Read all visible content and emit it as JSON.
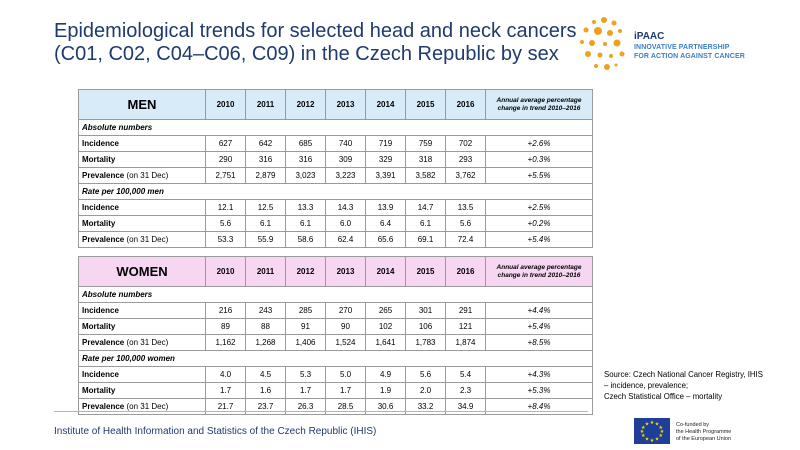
{
  "title": {
    "line1": "Epidemiological trends for selected head and neck cancers",
    "line2": "(C01, C02, C04–C06, C09) in the Czech Republic by sex"
  },
  "logo": {
    "brand_i": "i",
    "brand_rest": "PAAC",
    "tagline1": "INNOVATIVE PARTNERSHIP",
    "tagline2": "FOR ACTION AGAINST CANCER",
    "colors": {
      "dots": "#f0a01e",
      "text": "#1f3a6e",
      "tagline": "#3d7fc0"
    }
  },
  "tables": {
    "years": [
      "2010",
      "2011",
      "2012",
      "2013",
      "2014",
      "2015",
      "2016"
    ],
    "annual_header": "Annual average percentage change in trend 2010–2016",
    "men": {
      "label": "MEN",
      "header_color": "#d8ebf9",
      "sections": [
        {
          "title": "Absolute numbers",
          "rows": [
            {
              "label": "Incidence",
              "note": "",
              "values": [
                "627",
                "642",
                "685",
                "740",
                "719",
                "759",
                "702"
              ],
              "change": "+2.6%"
            },
            {
              "label": "Mortality",
              "note": "",
              "values": [
                "290",
                "316",
                "316",
                "309",
                "329",
                "318",
                "293"
              ],
              "change": "+0.3%"
            },
            {
              "label": "Prevalence",
              "note": " (on 31 Dec)",
              "values": [
                "2,751",
                "2,879",
                "3,023",
                "3,223",
                "3,391",
                "3,582",
                "3,762"
              ],
              "change": "+5.5%"
            }
          ]
        },
        {
          "title": "Rate per 100,000 men",
          "rows": [
            {
              "label": "Incidence",
              "note": "",
              "values": [
                "12.1",
                "12.5",
                "13.3",
                "14.3",
                "13.9",
                "14.7",
                "13.5"
              ],
              "change": "+2.5%"
            },
            {
              "label": "Mortality",
              "note": "",
              "values": [
                "5.6",
                "6.1",
                "6.1",
                "6.0",
                "6.4",
                "6.1",
                "5.6"
              ],
              "change": "+0.2%"
            },
            {
              "label": "Prevalence",
              "note": " (on 31 Dec)",
              "values": [
                "53.3",
                "55.9",
                "58.6",
                "62.4",
                "65.6",
                "69.1",
                "72.4"
              ],
              "change": "+5.4%"
            }
          ]
        }
      ]
    },
    "women": {
      "label": "WOMEN",
      "header_color": "#f7d6f1",
      "sections": [
        {
          "title": "Absolute numbers",
          "rows": [
            {
              "label": "Incidence",
              "note": "",
              "values": [
                "216",
                "243",
                "285",
                "270",
                "265",
                "301",
                "291"
              ],
              "change": "+4.4%"
            },
            {
              "label": "Mortality",
              "note": "",
              "values": [
                "89",
                "88",
                "91",
                "90",
                "102",
                "106",
                "121"
              ],
              "change": "+5.4%"
            },
            {
              "label": "Prevalence",
              "note": " (on 31 Dec)",
              "values": [
                "1,162",
                "1,268",
                "1,406",
                "1,524",
                "1,641",
                "1,783",
                "1,874"
              ],
              "change": "+8.5%"
            }
          ]
        },
        {
          "title": "Rate per 100,000 women",
          "rows": [
            {
              "label": "Incidence",
              "note": "",
              "values": [
                "4.0",
                "4.5",
                "5.3",
                "5.0",
                "4.9",
                "5.6",
                "5.4"
              ],
              "change": "+4.3%"
            },
            {
              "label": "Mortality",
              "note": "",
              "values": [
                "1.7",
                "1.6",
                "1.7",
                "1.7",
                "1.9",
                "2.0",
                "2.3"
              ],
              "change": "+5.3%"
            },
            {
              "label": "Prevalence",
              "note": " (on 31 Dec)",
              "values": [
                "21.7",
                "23.7",
                "26.3",
                "28.5",
                "30.6",
                "33.2",
                "34.9"
              ],
              "change": "+8.4%"
            }
          ]
        }
      ]
    }
  },
  "source": {
    "line1": "Source: Czech National Cancer Registry, IHIS",
    "line2": "– incidence, prevalence;",
    "line3": "Czech Statistical Office – mortality"
  },
  "footer": {
    "text": "Institute of Health Information and Statistics of the Czech Republic (IHIS)",
    "line_color": "#d8b64a"
  },
  "eu": {
    "line1": "Co-funded by",
    "line2": "the Health Programme",
    "line3": "of the European Union",
    "flag_color": "#1f3e98",
    "star_color": "#ffdd00"
  }
}
